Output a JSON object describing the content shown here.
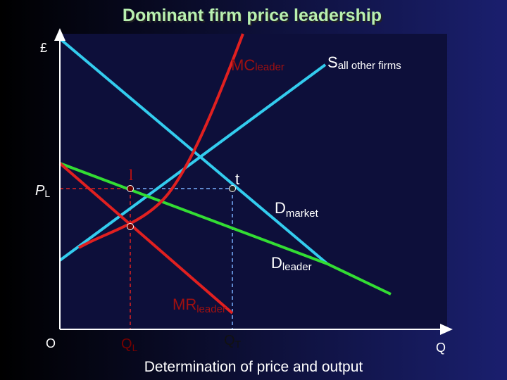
{
  "title": "Dominant firm price leadership",
  "axes": {
    "y_label": "£",
    "origin": "O",
    "x_label": "Q"
  },
  "curves": {
    "mc_leader": {
      "main": "MC",
      "sub": "leader"
    },
    "supply_others": {
      "main": "S",
      "sub": "all other firms"
    },
    "demand_market": {
      "main": "D",
      "sub": "market"
    },
    "demand_leader": {
      "main": "D",
      "sub": "leader"
    },
    "mr_leader": {
      "main": "MR",
      "sub": "leader"
    }
  },
  "points": {
    "leader_point": "l",
    "total_point": "t"
  },
  "levels": {
    "price": {
      "main": "P",
      "sub": "L"
    },
    "q_leader": {
      "main": "Q",
      "sub": "L"
    },
    "q_total": {
      "main": "Q",
      "sub": "T"
    }
  },
  "caption": "Determination of price and output"
}
